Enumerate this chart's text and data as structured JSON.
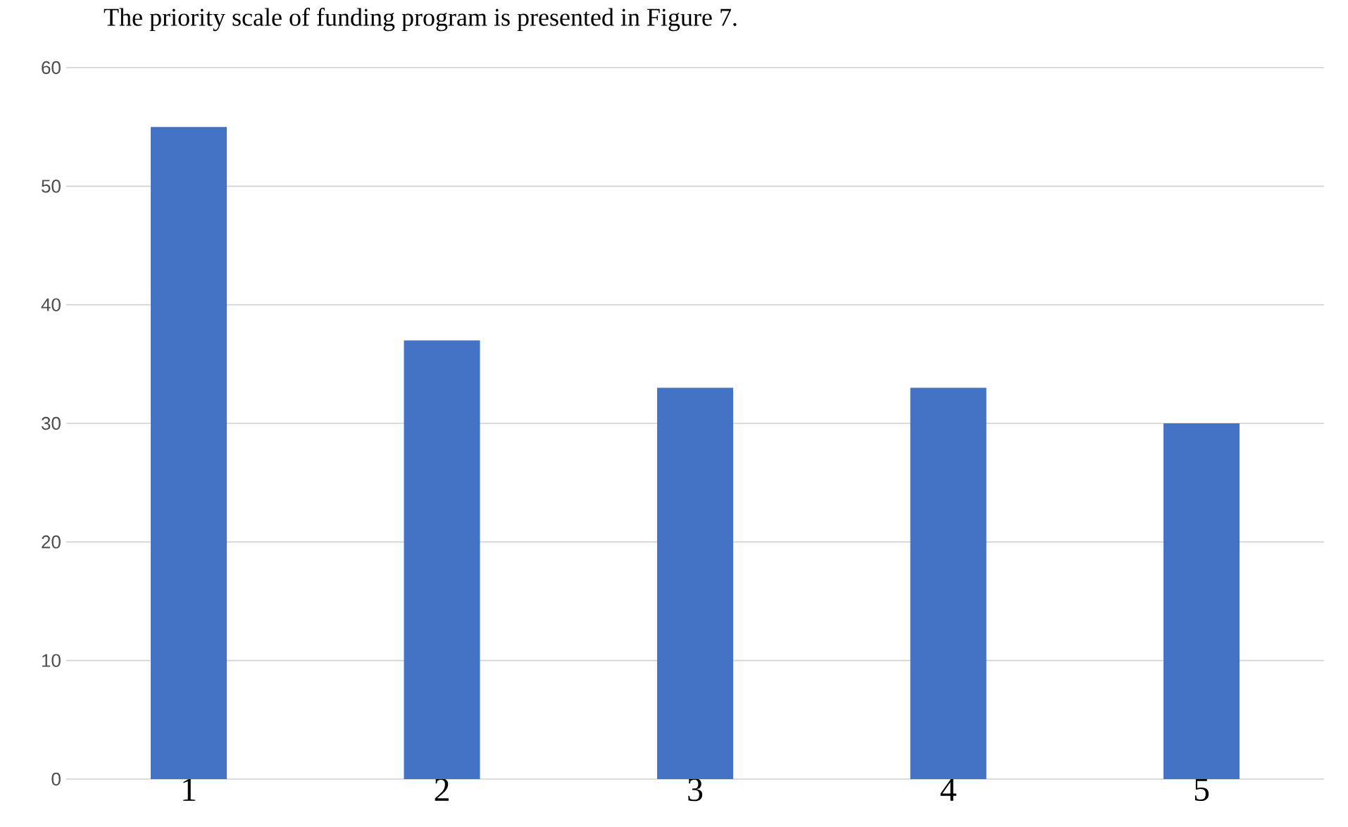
{
  "chart_data": {
    "type": "bar",
    "title": "The priority scale of funding program is presented in Figure 7.",
    "categories": [
      "1",
      "2",
      "3",
      "4",
      "5"
    ],
    "values": [
      55,
      37,
      33,
      33,
      30
    ],
    "color": "#4472c4",
    "ylim": [
      0,
      60
    ],
    "yticks": [
      0,
      10,
      20,
      30,
      40,
      50,
      60
    ],
    "grid": "y"
  }
}
